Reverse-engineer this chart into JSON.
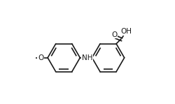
{
  "bg": "#ffffff",
  "lc": "#1a1a1a",
  "lw": 1.2,
  "fs": 7.5,
  "fw": 2.51,
  "fh": 1.49,
  "dpi": 100,
  "r1cx": 0.27,
  "r1cy": 0.445,
  "r1r": 0.155,
  "r2cx": 0.695,
  "r2cy": 0.445,
  "r2r": 0.155,
  "double1": [
    0,
    2,
    4
  ],
  "double2": [
    0,
    2,
    4
  ],
  "methoxy_label": "O",
  "nh_label": "NH",
  "o_label": "O",
  "oh_label": "OH"
}
